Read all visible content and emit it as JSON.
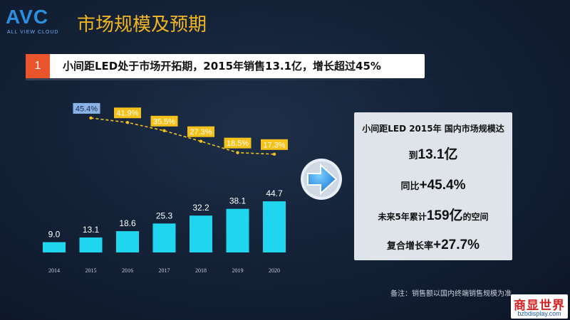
{
  "header": {
    "logo_text": "AVC",
    "logo_subtext": "ALL VIEW CLOUD",
    "title": "市场规模及预期"
  },
  "subtitle": {
    "number": "1",
    "text": "小间距LED处于市场开拓期，2015年销售13.1亿，增长超过45%"
  },
  "chart_data": {
    "type": "bar",
    "categories": [
      "2014",
      "2015",
      "2016",
      "2017",
      "2018",
      "2019",
      "2020"
    ],
    "series": [
      {
        "values": [
          9.0,
          13.1,
          18.6,
          25.3,
          32.2,
          38.1,
          44.7
        ],
        "color": "#1fd6ee"
      }
    ],
    "value_labels": [
      "9.0",
      "13.1",
      "18.6",
      "25.3",
      "32.2",
      "38.1",
      "44.7"
    ],
    "growth_rate": {
      "type": "line",
      "x": [
        "2015",
        "2016",
        "2017",
        "2018",
        "2019",
        "2020"
      ],
      "values": [
        45.4,
        41.9,
        35.5,
        27.3,
        18.5,
        17.3
      ],
      "labels": [
        "45.4%",
        "41.9%",
        "35.5%",
        "27.3%",
        "18.5%",
        "17.3%"
      ],
      "line_color": "#f5c21b",
      "first_label_color": "#8ab4e8",
      "label_color": "#f5c21b",
      "dashed": true
    },
    "ylim": [
      0,
      50
    ]
  },
  "info_box": {
    "line1": "小间距LED 2015年 国内市场规模达",
    "line2_prefix": "到",
    "line2_big": "13.1亿",
    "line3_prefix": "同比",
    "line3_big": "+45.4%",
    "line4_prefix": "未来5年累计",
    "line4_big": "159亿",
    "line4_suffix": "的空间",
    "line5_prefix": "复合增长率",
    "line5_big": "+27.7%"
  },
  "note": "备注：销售额以国内终端销售规模为准",
  "watermark": {
    "top": "商显世界",
    "bottom": "bzbdisplay.com"
  },
  "colors": {
    "title": "#f2b522",
    "accent_orange": "#e8552c",
    "bar": "#1fd6ee",
    "arrow": "#2a9ae8"
  }
}
